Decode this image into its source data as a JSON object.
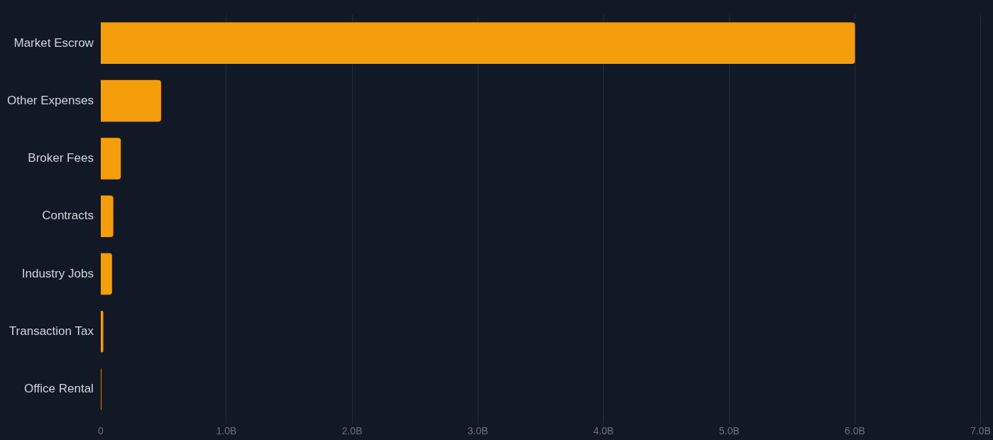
{
  "chart_data": {
    "type": "bar",
    "orientation": "horizontal",
    "categories": [
      "Market Escrow",
      "Other Expenses",
      "Broker Fees",
      "Contracts",
      "Industry Jobs",
      "Transaction Tax",
      "Office Rental"
    ],
    "values": [
      6.0,
      0.48,
      0.16,
      0.1,
      0.09,
      0.02,
      0.005
    ],
    "color": "#f59e0b",
    "xlim": [
      0,
      7
    ],
    "xticks": [
      0,
      {
        "value": 1,
        "label": "1.0B"
      },
      {
        "value": 2,
        "label": "2.0B"
      },
      {
        "value": 3,
        "label": "3.0B"
      },
      {
        "value": 4,
        "label": "4.0B"
      },
      {
        "value": 5,
        "label": "5.0B"
      },
      {
        "value": 6,
        "label": "6.0B"
      },
      {
        "value": 7,
        "label": "7.0B"
      }
    ],
    "grid": "x",
    "legend": false
  }
}
